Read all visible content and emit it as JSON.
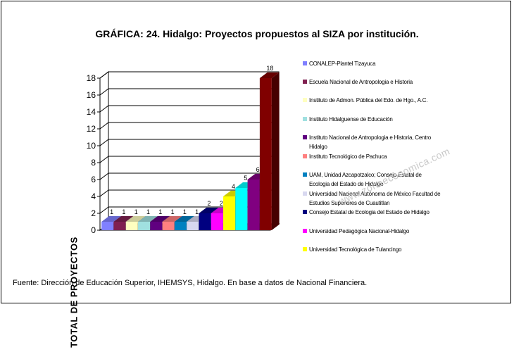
{
  "source": "Fuente: Dirección de Educación Superior, IHEMSYS, Hidalgo.  En base a datos de Nacional Financiera.",
  "watermark": "www.zonaeconomica.com",
  "chart_data": {
    "type": "bar",
    "title": "GRÁFICA: 24. Hidalgo: Proyectos propuestos al SIZA por institución.",
    "ylabel": "TOTAL DE PROYECTOS",
    "xlabel": "",
    "ylim": [
      0,
      18
    ],
    "yticks": [
      0,
      2,
      4,
      6,
      8,
      10,
      12,
      14,
      16,
      18
    ],
    "grid": true,
    "legend_position": "right",
    "series": [
      {
        "name": "CONALEP-Plantel Tizayuca",
        "value": 1,
        "color": "#8080ff"
      },
      {
        "name": "Escuela Nacional de Antropologia e Historia",
        "value": 1,
        "color": "#802050"
      },
      {
        "name": "Instituto de Admon. Pública del Edo. de Hgo., A.C.",
        "value": 1,
        "color": "#ffffc0"
      },
      {
        "name": "Instituto Hidalguense de Educación",
        "value": 1,
        "color": "#a0e0e0"
      },
      {
        "name": "Instituto Nacional de Antropologia e Historia, Centro Hidalgo",
        "value": 1,
        "color": "#600080"
      },
      {
        "name": "Instituto Tecnológico de Pachuca",
        "value": 1,
        "color": "#ff8080"
      },
      {
        "name": "UAM, Unidad Azcapotzalco; Consejo Estatal de Ecologia del Estado de Hidalgo",
        "value": 1,
        "color": "#0080c0"
      },
      {
        "name": "Universidad Nacional Autónoma de México Facultad de Estudios Superiores de Cuautitlan",
        "value": 1,
        "color": "#d8d8f0"
      },
      {
        "name": "Consejo Estatal de Ecologia del Estado de Hidalgo",
        "value": 2,
        "color": "#000080"
      },
      {
        "name": "Universidad Pedagógica Nacional-Hidalgo",
        "value": 2,
        "color": "#ff00ff"
      },
      {
        "name": "Universidad Tecnológica de Tulancingo",
        "value": 4,
        "color": "#ffff00"
      },
      {
        "name": "",
        "value": 5,
        "color": "#00ffff"
      },
      {
        "name": "",
        "value": 6,
        "color": "#800080"
      },
      {
        "name": "",
        "value": 18,
        "color": "#800000"
      }
    ]
  }
}
